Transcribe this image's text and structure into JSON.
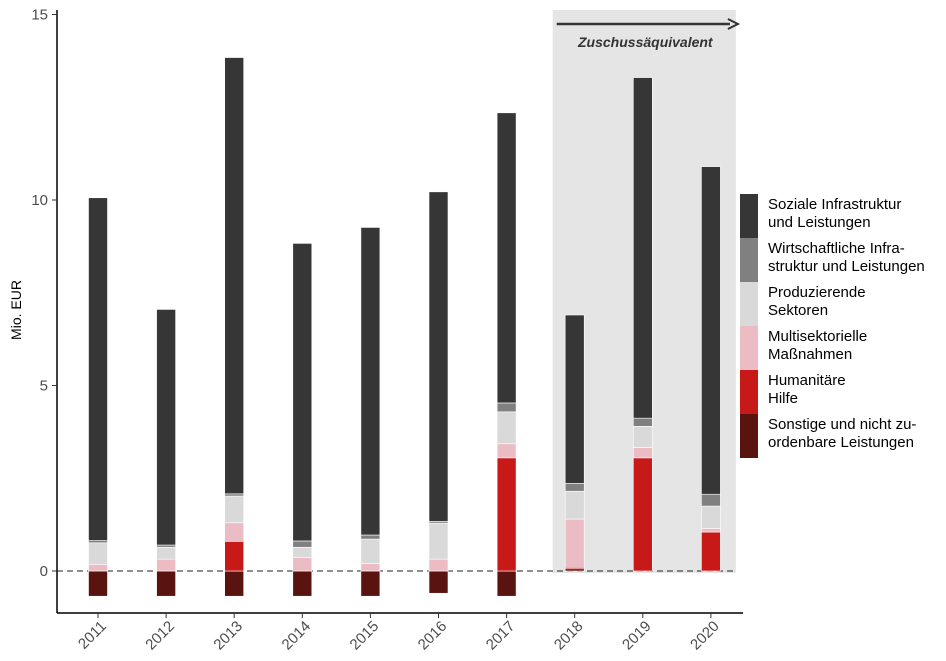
{
  "chart_data": {
    "type": "bar",
    "stacked": true,
    "ylabel": "Mio. EUR",
    "ylim": [
      -1.2,
      15.3
    ],
    "yticks": [
      0,
      5,
      10,
      15
    ],
    "categories": [
      "2011",
      "2012",
      "2013",
      "2014",
      "2015",
      "2016",
      "2017",
      "2018",
      "2019",
      "2020"
    ],
    "series": [
      {
        "name": "Sonstige und nicht zu-\nordenbare Leistungen",
        "color": "#5a1410",
        "values": [
          -0.68,
          -0.68,
          -0.68,
          -0.68,
          -0.68,
          -0.6,
          -0.68,
          0.06,
          0.0,
          0.0
        ]
      },
      {
        "name": "Humanitäre\nHilfe",
        "color": "#c81919",
        "values": [
          0.0,
          0.0,
          0.8,
          0.0,
          0.0,
          0.0,
          3.05,
          0.04,
          3.05,
          1.05
        ]
      },
      {
        "name": "Multisektorielle\nMaßnahmen",
        "color": "#ebbcc4",
        "values": [
          0.18,
          0.32,
          0.5,
          0.36,
          0.2,
          0.32,
          0.38,
          1.3,
          0.28,
          0.1
        ]
      },
      {
        "name": "Produzierende\nSektoren",
        "color": "#d9d9d9",
        "values": [
          0.58,
          0.32,
          0.72,
          0.28,
          0.66,
          0.97,
          0.86,
          0.75,
          0.57,
          0.6
        ]
      },
      {
        "name": "Wirtschaftliche Infra-\nstruktur und Leistungen",
        "color": "#808080",
        "values": [
          0.06,
          0.06,
          0.06,
          0.17,
          0.11,
          0.05,
          0.24,
          0.21,
          0.22,
          0.32
        ]
      },
      {
        "name": "Soziale Infrastruktur\nund Leistungen",
        "color": "#363636",
        "values": [
          9.24,
          6.35,
          11.76,
          8.02,
          8.29,
          8.88,
          7.82,
          4.54,
          9.18,
          8.83
        ]
      }
    ],
    "annotation": {
      "text": "Zuschussäquivalent",
      "from_category": "2018",
      "to_category": "2020"
    },
    "reference_line": {
      "y": 0,
      "style": "dashed"
    },
    "grid": false,
    "legend_position": "right"
  }
}
